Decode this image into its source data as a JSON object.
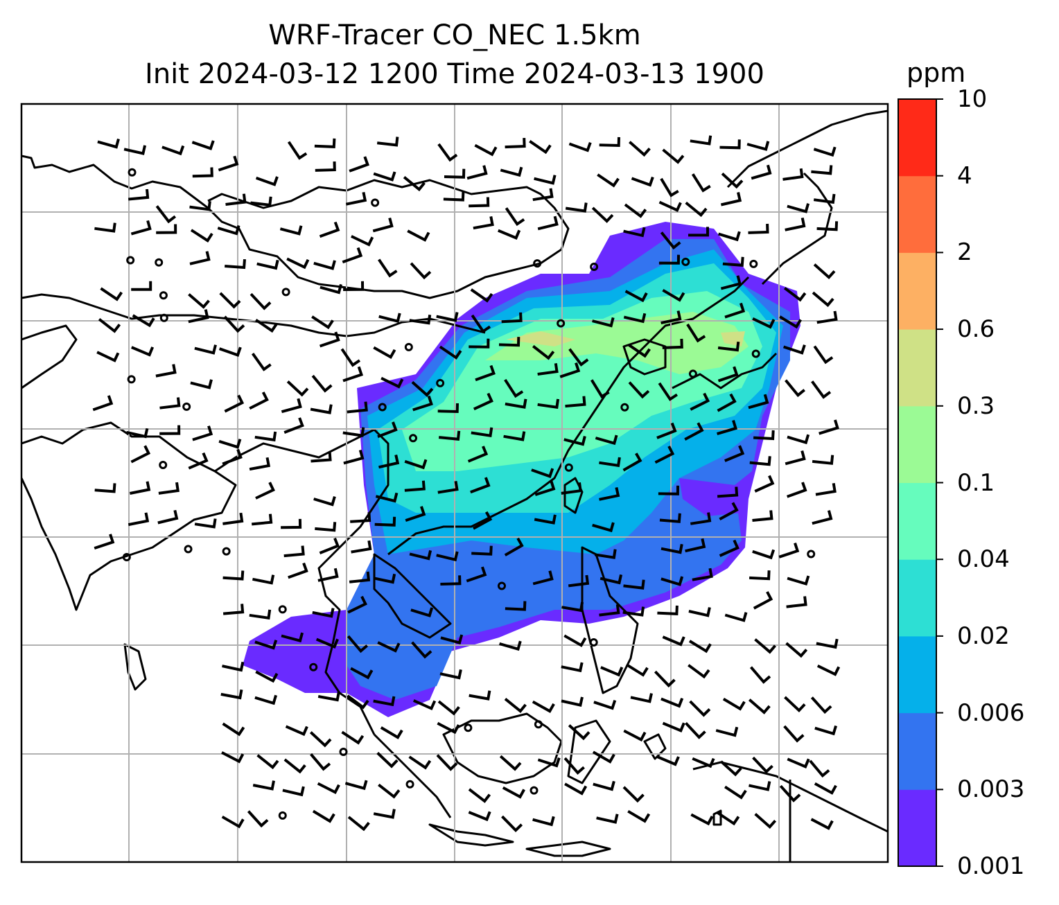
{
  "title": {
    "line1": "WRF-Tracer CO_NEC 1.5km",
    "line2": "Init 2024-03-12 1200 Time 2024-03-13 1900"
  },
  "colorbar": {
    "unit": "ppm",
    "levels": [
      "0.001",
      "0.003",
      "0.006",
      "0.02",
      "0.04",
      "0.1",
      "0.3",
      "0.6",
      "2",
      "4",
      "10"
    ],
    "colors": [
      "#6a2bff",
      "#3374f0",
      "#05b0ea",
      "#2ddfd4",
      "#66fcbd",
      "#9bfa95",
      "#cfe186",
      "#fdb063",
      "#ff6d3c",
      "#ff2a18"
    ]
  },
  "map": {
    "gridlines": true,
    "coastline_color": "#000000",
    "grid_color": "#b0b0b0",
    "wind_barbs": true,
    "calm_symbol": "circle"
  }
}
